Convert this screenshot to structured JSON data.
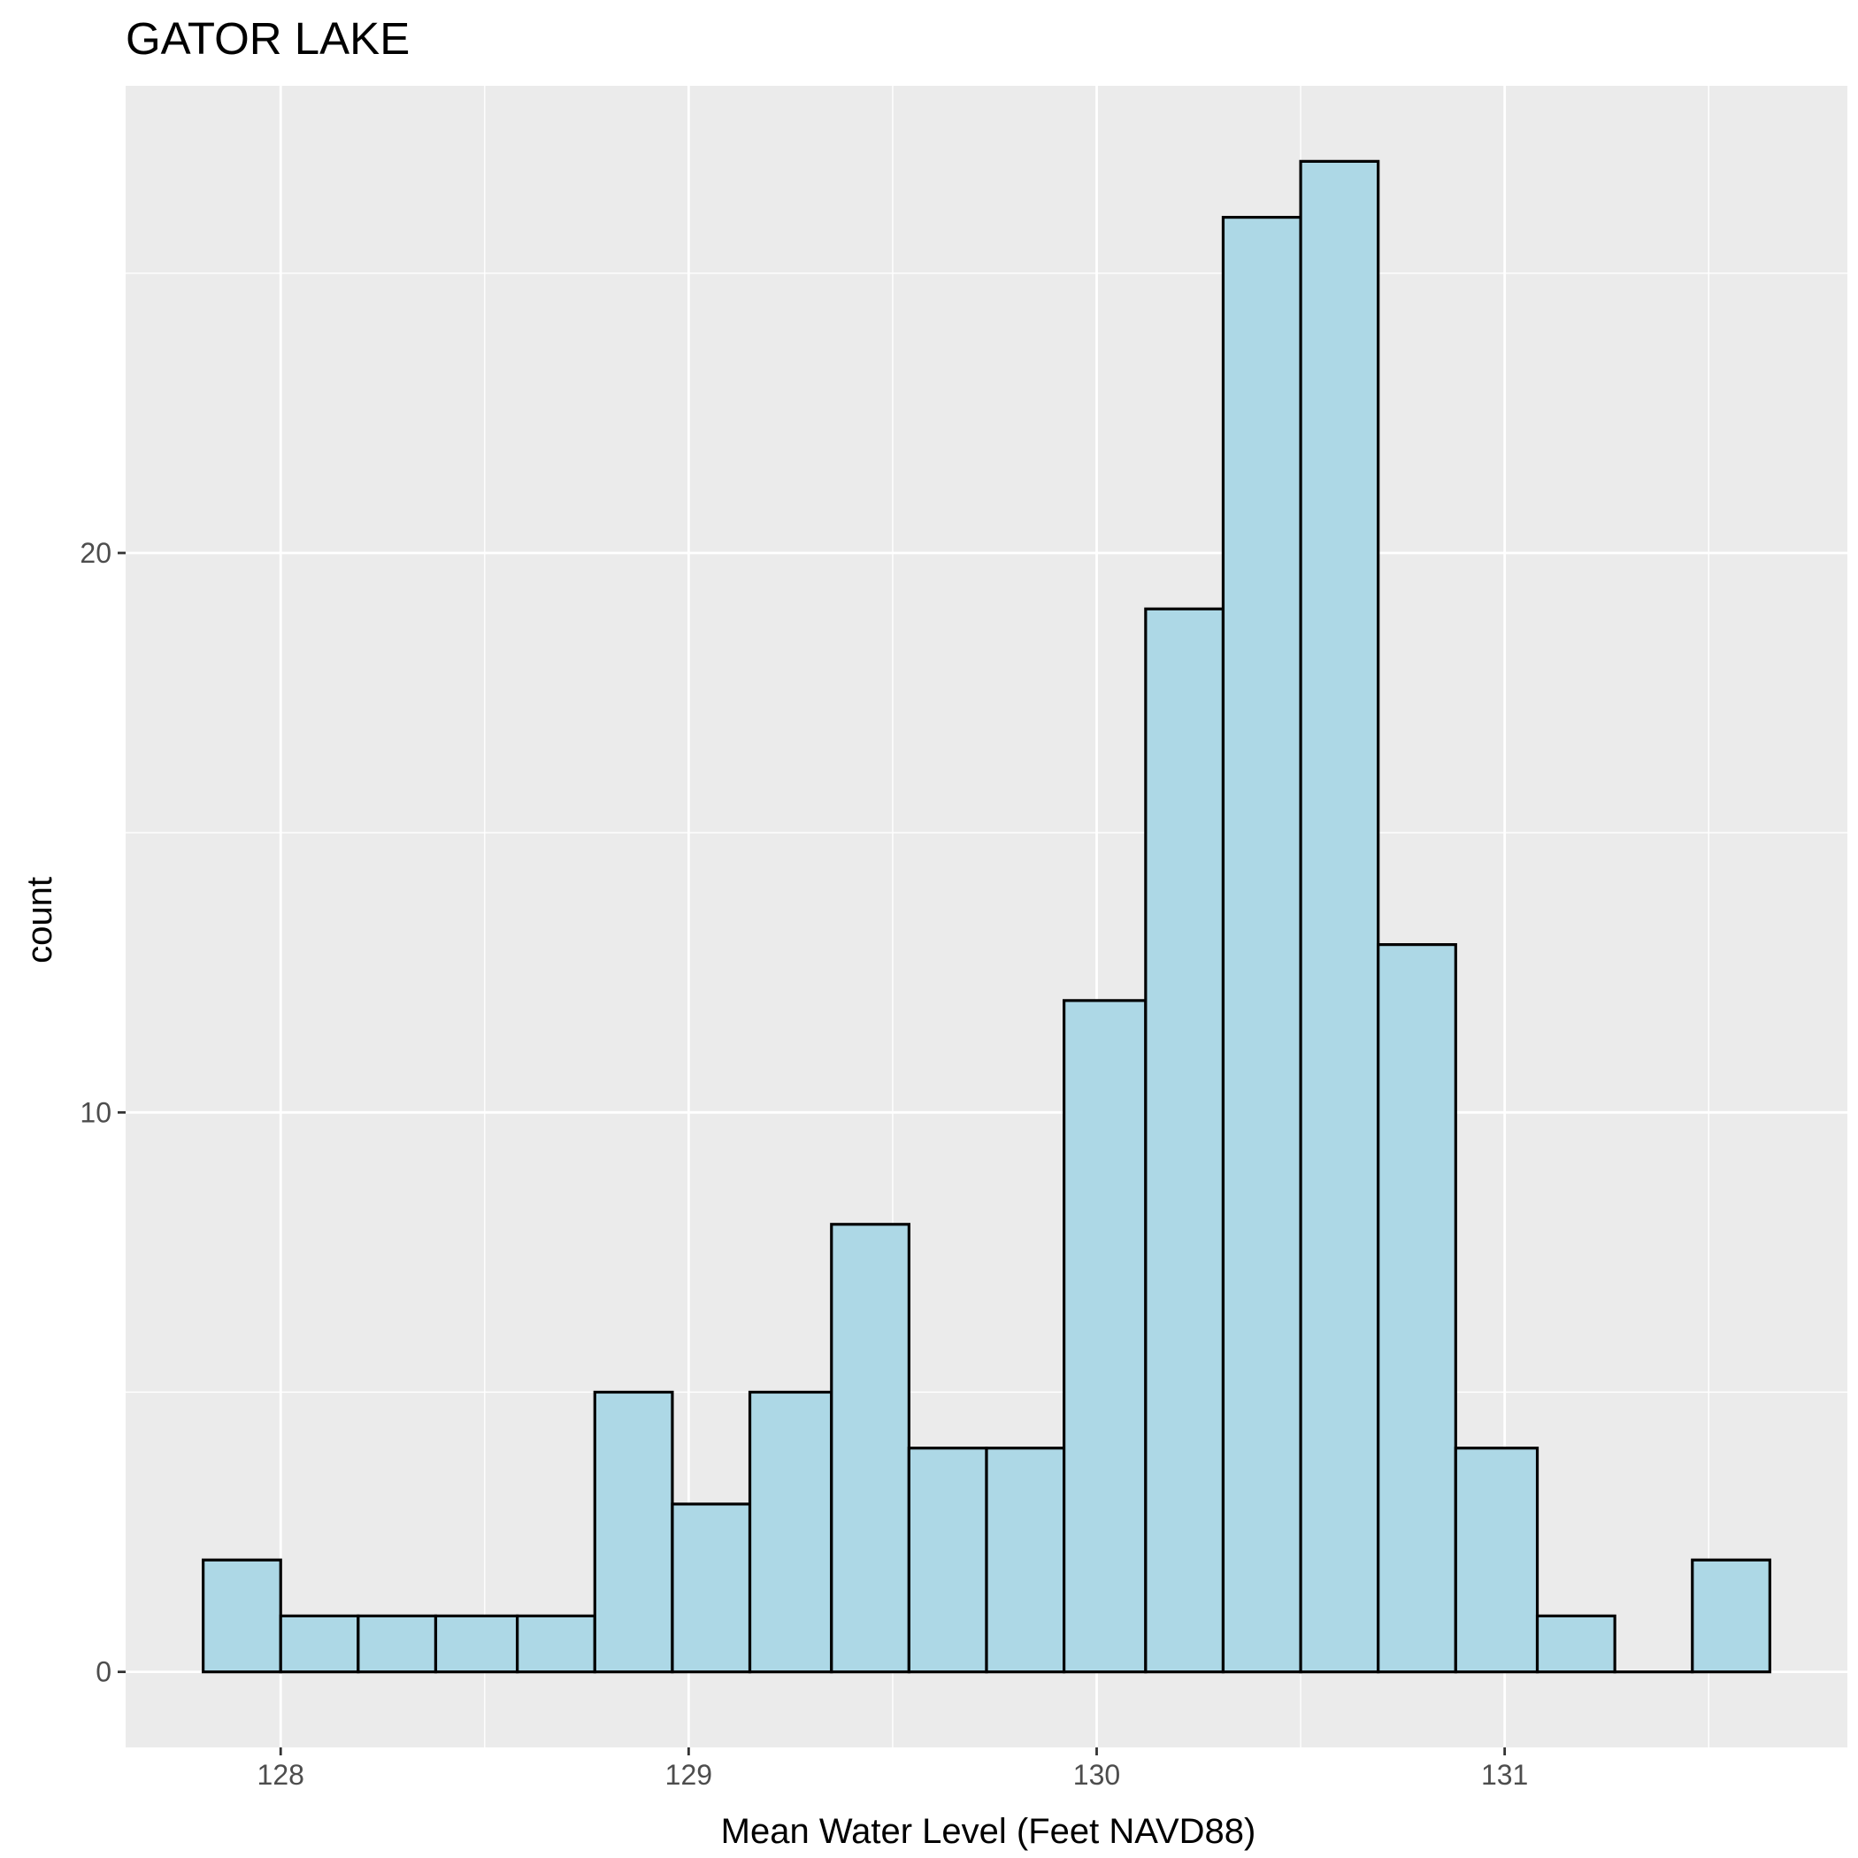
{
  "chart_data": {
    "type": "bar",
    "title": "GATOR LAKE",
    "xlabel": "Mean Water Level (Feet NAVD88)",
    "ylabel": "count",
    "bin_width": 0.1923,
    "bins": [
      {
        "start": 127.81,
        "end": 128.0,
        "count": 2
      },
      {
        "start": 128.0,
        "end": 128.19,
        "count": 1
      },
      {
        "start": 128.19,
        "end": 128.38,
        "count": 1
      },
      {
        "start": 128.38,
        "end": 128.58,
        "count": 1
      },
      {
        "start": 128.58,
        "end": 128.77,
        "count": 1
      },
      {
        "start": 128.77,
        "end": 128.96,
        "count": 5
      },
      {
        "start": 128.96,
        "end": 129.15,
        "count": 3
      },
      {
        "start": 129.15,
        "end": 129.35,
        "count": 5
      },
      {
        "start": 129.35,
        "end": 129.54,
        "count": 8
      },
      {
        "start": 129.54,
        "end": 129.73,
        "count": 4
      },
      {
        "start": 129.73,
        "end": 129.92,
        "count": 4
      },
      {
        "start": 129.92,
        "end": 130.12,
        "count": 12
      },
      {
        "start": 130.12,
        "end": 130.31,
        "count": 19
      },
      {
        "start": 130.31,
        "end": 130.5,
        "count": 26
      },
      {
        "start": 130.5,
        "end": 130.69,
        "count": 27
      },
      {
        "start": 130.69,
        "end": 130.88,
        "count": 13
      },
      {
        "start": 130.88,
        "end": 131.08,
        "count": 4
      },
      {
        "start": 131.08,
        "end": 131.27,
        "count": 1
      },
      {
        "start": 131.27,
        "end": 131.46,
        "count": 0
      },
      {
        "start": 131.46,
        "end": 131.65,
        "count": 2
      }
    ],
    "xlim": [
      127.62,
      131.84
    ],
    "ylim": [
      -1.35,
      28.35
    ],
    "x_ticks": [
      128,
      129,
      130,
      131
    ],
    "x_tick_labels": [
      "128",
      "129",
      "130",
      "131"
    ],
    "y_ticks": [
      0,
      10,
      20
    ],
    "y_tick_labels": [
      "0",
      "10",
      "20"
    ],
    "x_minor_ticks": [
      128.5,
      129.5,
      130.5,
      131.5
    ],
    "y_minor_ticks": [
      5,
      15,
      25
    ],
    "grid": true,
    "legend": "none",
    "colors": {
      "panel_background": "#ebebeb",
      "grid": "#ffffff",
      "bar_fill": "#add8e6",
      "bar_outline": "#000000",
      "tick_text": "#4d4d4d",
      "text": "#000000"
    }
  }
}
